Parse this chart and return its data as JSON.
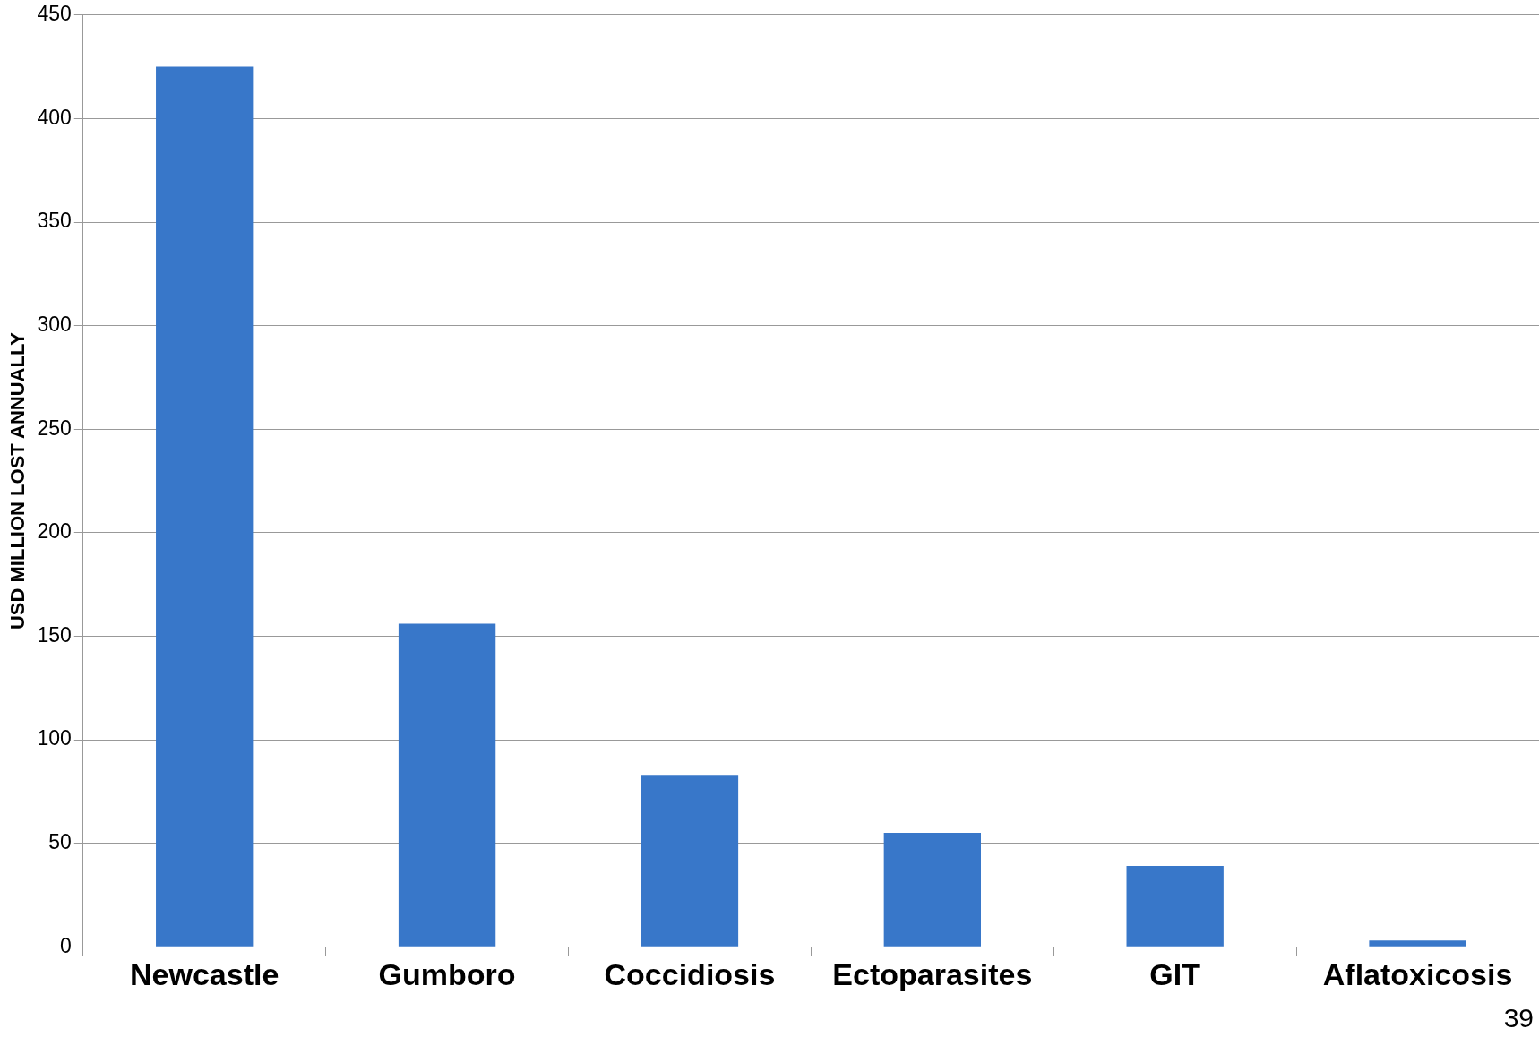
{
  "chart_data": {
    "type": "bar",
    "ylabel": "USD MILLION LOST ANNUALLY",
    "categories": [
      "Newcastle",
      "Gumboro",
      "Coccidiosis",
      "Ectoparasites",
      "GIT",
      "Aflatoxicosis"
    ],
    "values": [
      425,
      156,
      83,
      55,
      39,
      3
    ],
    "color": "#3877c9",
    "ylim": [
      0,
      450
    ],
    "yticks": [
      0,
      50,
      100,
      150,
      200,
      250,
      300,
      350,
      400,
      450
    ],
    "grid": "y",
    "legend": false,
    "annotations": [
      "39"
    ]
  }
}
